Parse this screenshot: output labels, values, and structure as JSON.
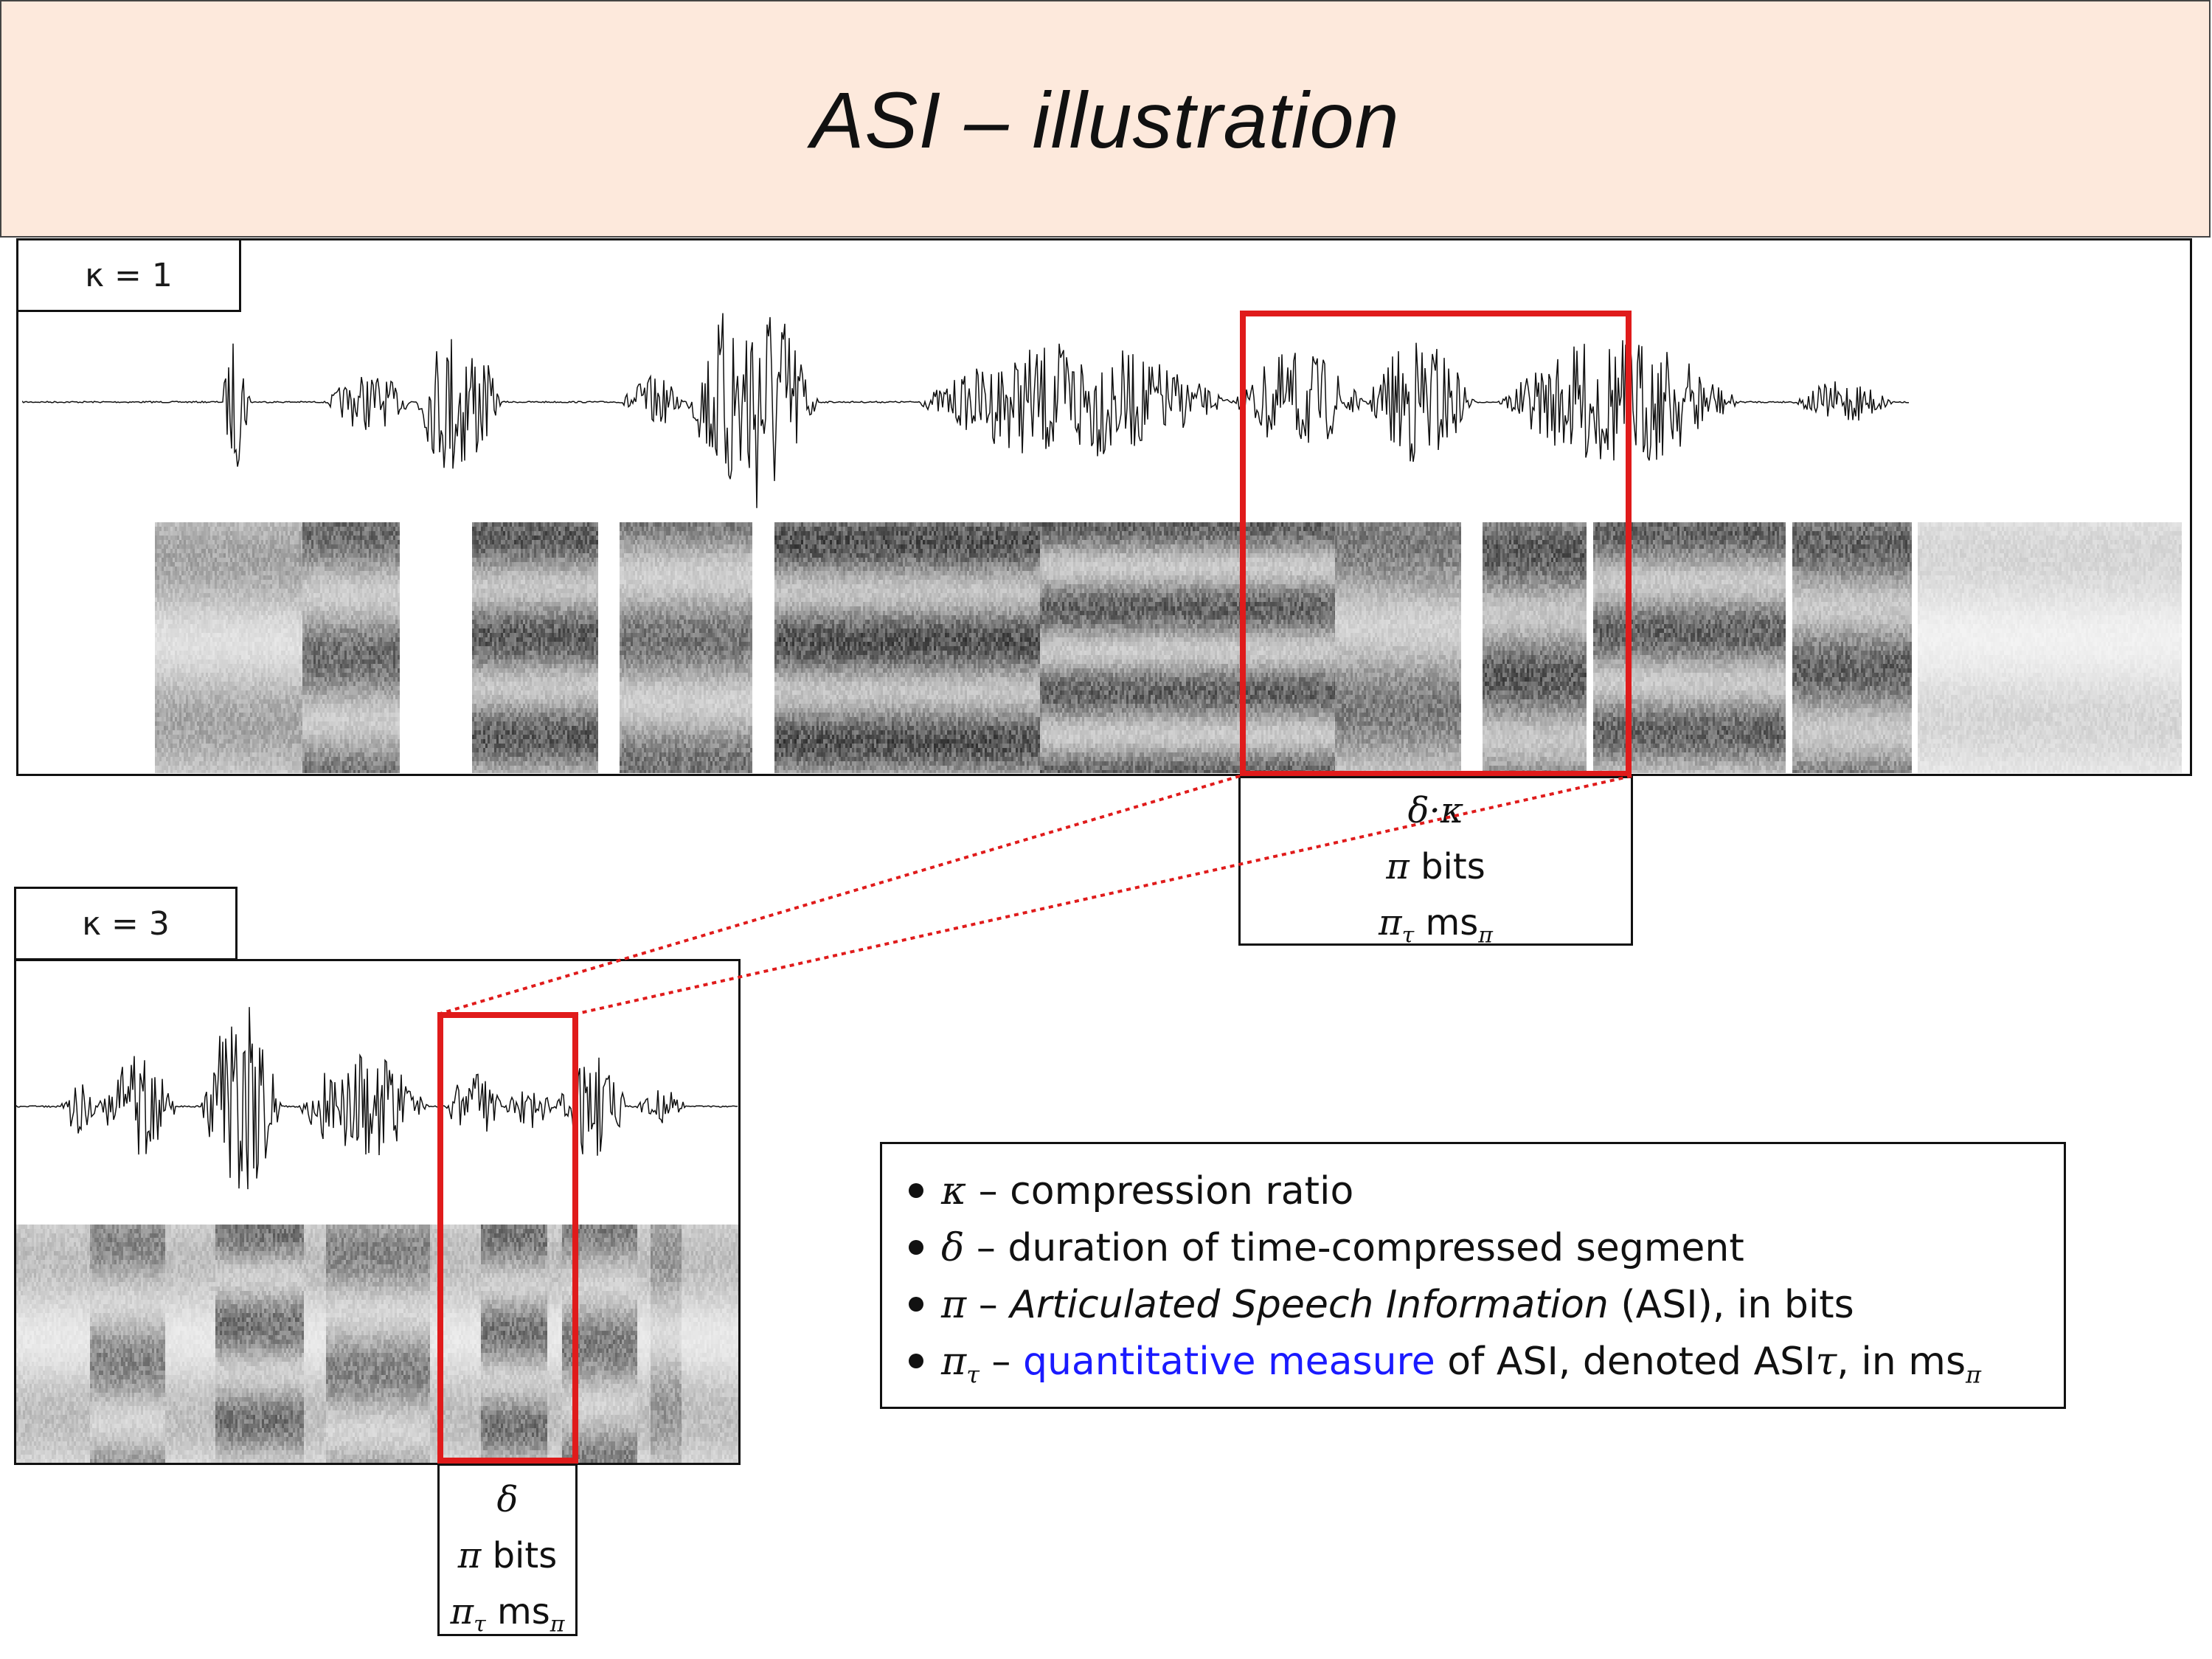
{
  "title": "ASI – illustration",
  "panels": {
    "top": {
      "kappa_label": "κ = 1"
    },
    "bottom": {
      "kappa_label": "κ = 3"
    }
  },
  "top_info": {
    "line1": "δ·κ",
    "line2_sym": "π",
    "line2_text": "bits",
    "line3_sym": "π",
    "line3_sub": "τ",
    "line3_text": "ms",
    "line3_text_sub": "π"
  },
  "bottom_info": {
    "line1": "δ",
    "line2_sym": "π",
    "line2_text": "bits",
    "line3_sym": "π",
    "line3_sub": "τ",
    "line3_text": "ms",
    "line3_text_sub": "π"
  },
  "legend": {
    "items": [
      {
        "sym": "κ",
        "text": "– compression ratio"
      },
      {
        "sym": "δ",
        "text": "– duration of time-compressed segment"
      },
      {
        "sym": "π",
        "dash": "–",
        "italic_text": "Articulated Speech Information",
        "text_after": "(ASI), in bits"
      },
      {
        "sym": "π",
        "sub": "τ",
        "dash": "–",
        "blue_text": "quantitative measure",
        "text_mid": "of ASI, denoted ASI",
        "sym_tau": "τ",
        "text_end": ", in ms",
        "end_sub": "π"
      }
    ]
  },
  "colors": {
    "highlight": "#e01b1b",
    "title_band": "#fde9dc",
    "link_blue": "#1a1aff"
  }
}
